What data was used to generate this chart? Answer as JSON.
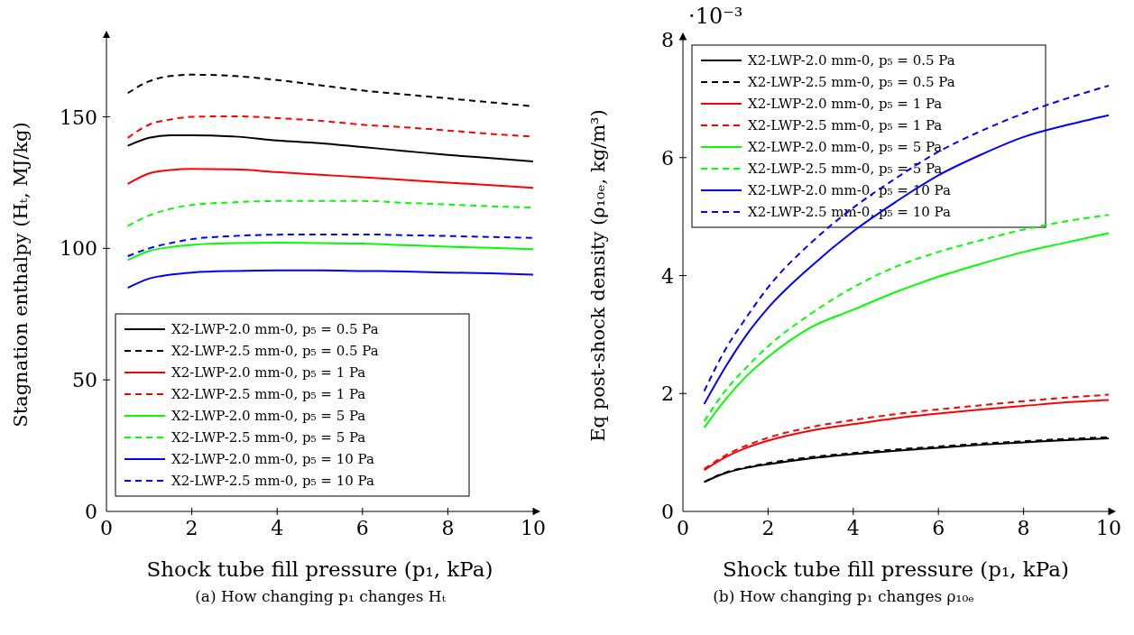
{
  "chart_data": [
    {
      "type": "line",
      "xlabel": "Shock tube fill pressure (p₁, kPa)",
      "ylabel": "Stagnation enthalpy (Hₜ, MJ/kg)",
      "annotations": [
        "(a) How changing p₁ changes Hₜ"
      ],
      "x": [
        0.5,
        1,
        1.5,
        2,
        3,
        4,
        5,
        6,
        7,
        8,
        9,
        10
      ],
      "xlim": [
        0,
        10
      ],
      "xticks": [
        0,
        2,
        4,
        6,
        8,
        10
      ],
      "ylim": [
        0,
        180
      ],
      "yticks": [
        0,
        50,
        100,
        150
      ],
      "legend": "bottom left",
      "series": [
        {
          "name": "X2-LWP-2.0 mm-0, p₅ = 0.5 Pa",
          "color": "#000000",
          "line_style": "solid",
          "values": [
            139,
            142,
            143,
            143,
            142.5,
            141,
            140,
            138.5,
            137,
            135.5,
            134.3,
            133
          ]
        },
        {
          "name": "X2-LWP-2.5 mm-0, p₅ = 0.5 Pa",
          "color": "#000000",
          "line_style": "dashed",
          "values": [
            159,
            163.5,
            165.5,
            166,
            165.5,
            164,
            162,
            160,
            158.5,
            157,
            155.5,
            154
          ]
        },
        {
          "name": "X2-LWP-2.0 mm-0, p₅ = 1 Pa",
          "color": "#ff0000",
          "line_style": "solid",
          "values": [
            124.5,
            128.5,
            129.8,
            130.2,
            130,
            129,
            128,
            127,
            126,
            125,
            124,
            123
          ]
        },
        {
          "name": "X2-LWP-2.5 mm-0, p₅ = 1 Pa",
          "color": "#ff0000",
          "line_style": "dashed",
          "values": [
            142,
            147,
            149,
            150,
            150.2,
            149.5,
            148.5,
            147,
            146,
            144.8,
            143.5,
            142.5
          ]
        },
        {
          "name": "X2-LWP-2.0 mm-0, p₅ = 5 Pa",
          "color": "#00ff00",
          "line_style": "solid",
          "values": [
            95.5,
            99,
            100.5,
            101.3,
            102,
            102.2,
            102,
            101.8,
            101.2,
            100.6,
            100.2,
            99.7
          ]
        },
        {
          "name": "X2-LWP-2.5 mm-0, p₅ = 5 Pa",
          "color": "#00ff00",
          "line_style": "dashed",
          "values": [
            108.5,
            112.5,
            115,
            116.5,
            117.5,
            118,
            118,
            118,
            117.3,
            116.7,
            116,
            115.5
          ]
        },
        {
          "name": "X2-LWP-2.0 mm-0, p₅ = 10 Pa",
          "color": "#0000ff",
          "line_style": "solid",
          "values": [
            85,
            88.5,
            90,
            90.8,
            91.4,
            91.6,
            91.6,
            91.4,
            91.2,
            90.8,
            90.5,
            90
          ]
        },
        {
          "name": "X2-LWP-2.5 mm-0, p₅ = 10 Pa",
          "color": "#0000ff",
          "line_style": "dashed",
          "values": [
            97,
            100,
            102,
            103.5,
            104.7,
            105.2,
            105.3,
            105.3,
            105,
            104.7,
            104.3,
            104
          ]
        }
      ]
    },
    {
      "type": "line",
      "xlabel": "Shock tube fill pressure (p₁, kPa)",
      "ylabel": "Eq post-shock density (ρ₁₀ₑ, kg/m³)",
      "annotations": [
        "·10⁻³",
        "(b) How changing p₁ changes ρ₁₀ₑ"
      ],
      "x": [
        0.5,
        1,
        1.5,
        2,
        3,
        4,
        5,
        6,
        7,
        8,
        9,
        10
      ],
      "xlim": [
        0,
        10
      ],
      "xticks": [
        0,
        2,
        4,
        6,
        8,
        10
      ],
      "ylim": [
        0,
        8
      ],
      "yticks": [
        0,
        2,
        4,
        6,
        8
      ],
      "legend": "top left",
      "series": [
        {
          "name": "X2-LWP-2.0 mm-0, p₅ = 0.5 Pa",
          "color": "#000000",
          "line_style": "solid",
          "values": [
            0.5,
            0.65,
            0.74,
            0.8,
            0.9,
            0.97,
            1.03,
            1.08,
            1.13,
            1.17,
            1.21,
            1.24
          ]
        },
        {
          "name": "X2-LWP-2.5 mm-0, p₅ = 0.5 Pa",
          "color": "#000000",
          "line_style": "dashed",
          "values": [
            0.5,
            0.66,
            0.75,
            0.82,
            0.92,
            0.99,
            1.05,
            1.1,
            1.15,
            1.19,
            1.23,
            1.26
          ]
        },
        {
          "name": "X2-LWP-2.0 mm-0, p₅ = 1 Pa",
          "color": "#ff0000",
          "line_style": "solid",
          "values": [
            0.7,
            0.92,
            1.08,
            1.2,
            1.37,
            1.48,
            1.58,
            1.66,
            1.73,
            1.79,
            1.85,
            1.89
          ]
        },
        {
          "name": "X2-LWP-2.5 mm-0, p₅ = 1 Pa",
          "color": "#ff0000",
          "line_style": "dashed",
          "values": [
            0.72,
            0.95,
            1.12,
            1.25,
            1.43,
            1.55,
            1.65,
            1.73,
            1.8,
            1.87,
            1.93,
            1.98
          ]
        },
        {
          "name": "X2-LWP-2.0 mm-0, p₅ = 5 Pa",
          "color": "#00ff00",
          "line_style": "solid",
          "values": [
            1.42,
            1.9,
            2.3,
            2.62,
            3.12,
            3.42,
            3.72,
            3.98,
            4.2,
            4.4,
            4.56,
            4.72
          ]
        },
        {
          "name": "X2-LWP-2.5 mm-0, p₅ = 5 Pa",
          "color": "#00ff00",
          "line_style": "dashed",
          "values": [
            1.53,
            2.05,
            2.45,
            2.8,
            3.35,
            3.8,
            4.15,
            4.4,
            4.6,
            4.78,
            4.92,
            5.03
          ]
        },
        {
          "name": "X2-LWP-2.0 mm-0, p₅ = 10 Pa",
          "color": "#0000ff",
          "line_style": "solid",
          "values": [
            1.82,
            2.45,
            3.0,
            3.45,
            4.15,
            4.75,
            5.25,
            5.7,
            6.05,
            6.35,
            6.55,
            6.72
          ]
        },
        {
          "name": "X2-LWP-2.5 mm-0, p₅ = 10 Pa",
          "color": "#0000ff",
          "line_style": "dashed",
          "values": [
            2.04,
            2.75,
            3.3,
            3.8,
            4.55,
            5.15,
            5.65,
            6.1,
            6.45,
            6.75,
            7.0,
            7.22
          ]
        }
      ]
    }
  ]
}
